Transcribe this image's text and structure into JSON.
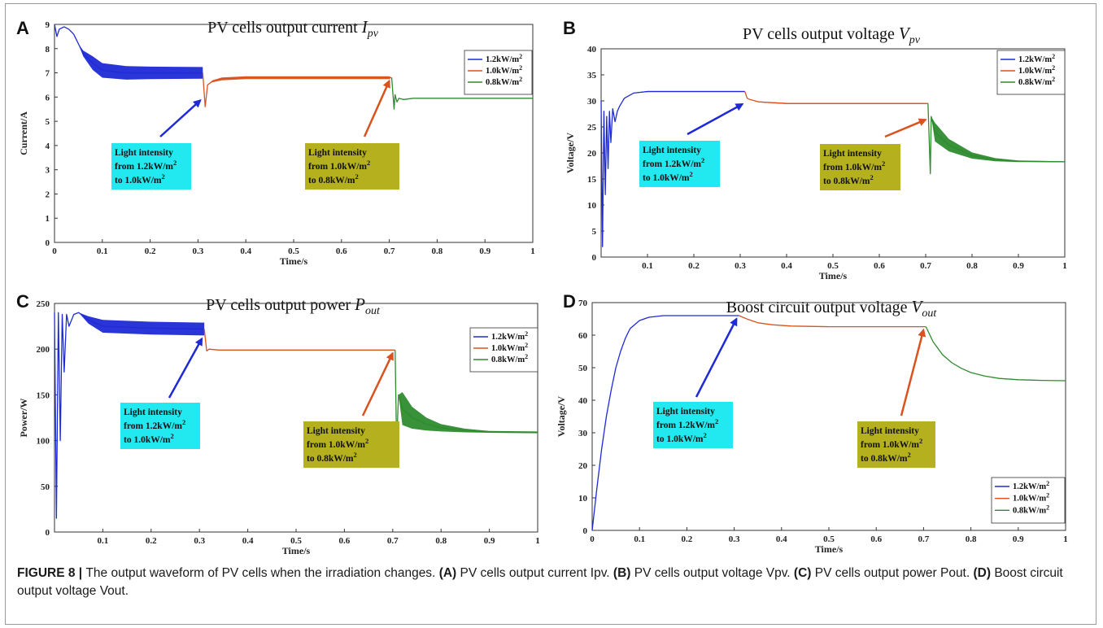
{
  "figure_label": "FIGURE 8",
  "caption_parts": [
    {
      "t": "The output waveform of PV cells when the irradiation changes. ",
      "b": false
    },
    {
      "t": "(A)",
      "b": true
    },
    {
      "t": " PV cells output current Ipv. ",
      "b": false
    },
    {
      "t": "(B)",
      "b": true
    },
    {
      "t": " PV cells output voltage Vpv. ",
      "b": false
    },
    {
      "t": "(C)",
      "b": true
    },
    {
      "t": " PV cells output power Pout. ",
      "b": false
    },
    {
      "t": "(D)",
      "b": true
    },
    {
      "t": " Boost circuit output voltage Vout.",
      "b": false
    }
  ],
  "series_colors": {
    "1.2kW/m2": "#1f2ad6",
    "1.0kW/m2": "#d9531e",
    "0.8kW/m2": "#2e8b2e"
  },
  "annotation_colors": {
    "cyan_box": "#22e8f0",
    "olive_box": "#b5b01e",
    "blue_arrow": "#1f2ad6",
    "orange_arrow": "#d9531e"
  },
  "chart_data": [
    {
      "letter": "A",
      "type": "line",
      "title_main": "PV cells output current ",
      "title_sym": "I",
      "title_sub": "pv",
      "xlabel": "Time/s",
      "ylabel": "Current/A",
      "xlim": [
        0,
        1
      ],
      "ylim": [
        0,
        9
      ],
      "xticks": [
        0,
        0.1,
        0.2,
        0.3,
        0.4,
        0.5,
        0.6,
        0.7,
        0.8,
        0.9,
        1
      ],
      "yticks": [
        0,
        1,
        2,
        3,
        4,
        5,
        6,
        7,
        8,
        9
      ],
      "legend": {
        "position": "top-right",
        "entries": [
          "1.2kW/m",
          "1.0kW/m",
          "0.8kW/m"
        ],
        "superscript": "2"
      },
      "series": [
        {
          "name": "1.2kW/m2",
          "x": [
            0,
            0.005,
            0.01,
            0.02,
            0.03,
            0.04,
            0.05,
            0.06,
            0.08,
            0.1,
            0.15,
            0.2,
            0.25,
            0.31
          ],
          "y": [
            9,
            8.5,
            8.8,
            8.9,
            8.8,
            8.6,
            8.2,
            7.8,
            7.4,
            7.1,
            7.0,
            7.0,
            7.0,
            7.0
          ],
          "band": [
            0,
            0,
            0,
            0,
            0,
            0,
            0,
            0.12,
            0.28,
            0.3,
            0.28,
            0.26,
            0.25,
            0.24
          ]
        },
        {
          "name": "1.0kW/m2",
          "x": [
            0.31,
            0.315,
            0.32,
            0.33,
            0.35,
            0.4,
            0.5,
            0.6,
            0.7,
            0.705
          ],
          "y": [
            7.0,
            5.6,
            6.5,
            6.65,
            6.75,
            6.8,
            6.8,
            6.8,
            6.8,
            6.8
          ],
          "band": [
            0,
            0,
            0,
            0.04,
            0.06,
            0.06,
            0.06,
            0.06,
            0.06,
            0
          ]
        },
        {
          "name": "0.8kW/m2",
          "x": [
            0.705,
            0.71,
            0.712,
            0.716,
            0.72,
            0.73,
            0.75,
            0.8,
            0.9,
            1.0
          ],
          "y": [
            6.8,
            5.5,
            6.1,
            5.8,
            5.95,
            5.9,
            5.95,
            5.95,
            5.95,
            5.95
          ],
          "band": [
            0,
            0,
            0,
            0,
            0,
            0,
            0,
            0,
            0,
            0
          ]
        }
      ],
      "annotations": [
        {
          "lines": [
            "Light intensity",
            "from 1.2kW/m",
            "to 1.0kW/m"
          ],
          "sup_on": [
            1,
            2
          ],
          "box": "cyan",
          "arrow_to": [
            0.31,
            6.0
          ],
          "arrow_color": "blue"
        },
        {
          "lines": [
            "Light intensity",
            "from 1.0kW/m",
            "to 0.8kW/m"
          ],
          "sup_on": [
            1,
            2
          ],
          "box": "olive",
          "arrow_to": [
            0.705,
            6.8
          ],
          "arrow_color": "orange"
        }
      ]
    },
    {
      "letter": "B",
      "type": "line",
      "title_main": "PV cells output voltage ",
      "title_sym": "V",
      "title_sub": "pv",
      "xlabel": "Time/s",
      "ylabel": "Voltage/V",
      "xlim": [
        0,
        1
      ],
      "ylim": [
        0,
        40
      ],
      "xticks": [
        0.1,
        0.2,
        0.3,
        0.4,
        0.5,
        0.6,
        0.7,
        0.8,
        0.9,
        1
      ],
      "yticks": [
        0,
        5,
        10,
        15,
        20,
        25,
        30,
        35,
        40
      ],
      "legend": {
        "position": "top-right",
        "entries": [
          "1.2kW/m",
          "1.0kW/m",
          "0.8kW/m"
        ],
        "superscript": "2"
      },
      "series": [
        {
          "name": "1.2kW/m2",
          "x": [
            0,
            0.003,
            0.006,
            0.009,
            0.012,
            0.015,
            0.018,
            0.021,
            0.025,
            0.03,
            0.035,
            0.04,
            0.05,
            0.07,
            0.1,
            0.2,
            0.31
          ],
          "y": [
            30,
            2,
            28,
            12,
            27,
            17,
            28,
            22,
            28.5,
            26,
            28,
            29,
            30.5,
            31.5,
            31.8,
            31.8,
            31.8
          ],
          "band": [
            0,
            0,
            0,
            0,
            0,
            0,
            0,
            0,
            0,
            0,
            0,
            0,
            0,
            0.05,
            0.1,
            0.1,
            0.1
          ]
        },
        {
          "name": "1.0kW/m2",
          "x": [
            0.31,
            0.315,
            0.32,
            0.34,
            0.4,
            0.5,
            0.6,
            0.7,
            0.705
          ],
          "y": [
            31.8,
            30.5,
            30.3,
            29.8,
            29.5,
            29.5,
            29.5,
            29.5,
            29.5
          ],
          "band": [
            0,
            0,
            0,
            0.1,
            0.1,
            0.1,
            0.1,
            0.1,
            0
          ]
        },
        {
          "name": "0.8kW/m2",
          "x": [
            0.705,
            0.71,
            0.712,
            0.72,
            0.75,
            0.8,
            0.85,
            0.9,
            1.0
          ],
          "y": [
            29.5,
            16,
            27,
            24,
            21.5,
            19.5,
            18.7,
            18.4,
            18.3
          ],
          "band": [
            0,
            0,
            0,
            1.8,
            1.2,
            0.6,
            0.3,
            0.15,
            0.1
          ]
        }
      ],
      "annotations": [
        {
          "lines": [
            "Light intensity",
            "from 1.2kW/m",
            "to 1.0kW/m"
          ],
          "sup_on": [
            1,
            2
          ],
          "box": "cyan",
          "arrow_to": [
            0.31,
            30
          ],
          "arrow_color": "blue"
        },
        {
          "lines": [
            "Light intensity",
            "from 1.0kW/m",
            "to 0.8kW/m"
          ],
          "sup_on": [
            1,
            2
          ],
          "box": "olive",
          "arrow_to": [
            0.705,
            27
          ],
          "arrow_color": "orange"
        }
      ]
    },
    {
      "letter": "C",
      "type": "line",
      "title_main": "PV cells output power ",
      "title_sym": "P",
      "title_sub": "out",
      "xlabel": "Time/s",
      "ylabel": "Power/W",
      "xlim": [
        0,
        1
      ],
      "ylim": [
        0,
        250
      ],
      "xticks": [
        0.1,
        0.2,
        0.3,
        0.4,
        0.5,
        0.6,
        0.7,
        0.8,
        0.9,
        1
      ],
      "yticks": [
        0,
        50,
        100,
        150,
        200,
        250
      ],
      "legend": {
        "position": "top-right",
        "entries": [
          "1.2kW/m",
          "1.0kW/m",
          "0.8kW/m"
        ],
        "superscript": "2"
      },
      "series": [
        {
          "name": "1.2kW/m2",
          "x": [
            0,
            0.004,
            0.008,
            0.012,
            0.016,
            0.02,
            0.025,
            0.03,
            0.04,
            0.05,
            0.07,
            0.1,
            0.2,
            0.31
          ],
          "y": [
            240,
            15,
            240,
            100,
            238,
            175,
            238,
            225,
            238,
            240,
            232,
            225,
            223,
            222
          ],
          "band": [
            0,
            0,
            0,
            0,
            0,
            0,
            0,
            0,
            0,
            0,
            4,
            7,
            7,
            7
          ]
        },
        {
          "name": "1.0kW/m2",
          "x": [
            0.31,
            0.315,
            0.32,
            0.34,
            0.4,
            0.5,
            0.6,
            0.7,
            0.705
          ],
          "y": [
            222,
            198,
            200,
            199,
            199,
            199,
            199,
            199,
            199
          ],
          "band": [
            0,
            0,
            0,
            0,
            0,
            0,
            0,
            0,
            0
          ]
        },
        {
          "name": "0.8kW/m2",
          "x": [
            0.705,
            0.708,
            0.712,
            0.72,
            0.74,
            0.77,
            0.8,
            0.85,
            0.9,
            1.0
          ],
          "y": [
            199,
            95,
            150,
            135,
            125,
            118,
            114,
            111,
            109.5,
            109
          ],
          "band": [
            0,
            0,
            0,
            18,
            12,
            7,
            4,
            2,
            1,
            1
          ]
        }
      ],
      "annotations": [
        {
          "lines": [
            "Light intensity",
            "from 1.2kW/m",
            "to 1.0kW/m"
          ],
          "sup_on": [
            1,
            2
          ],
          "box": "cyan",
          "arrow_to": [
            0.31,
            215
          ],
          "arrow_color": "blue"
        },
        {
          "lines": [
            "Light intensity",
            "from 1.0kW/m",
            "to 0.8kW/m"
          ],
          "sup_on": [
            1,
            2
          ],
          "box": "olive",
          "arrow_to": [
            0.705,
            199
          ],
          "arrow_color": "orange"
        }
      ]
    },
    {
      "letter": "D",
      "type": "line",
      "title_main": "Boost circuit output voltage ",
      "title_sym": "V",
      "title_sub": "out",
      "xlabel": "Time/s",
      "ylabel": "Voltage/V",
      "xlim": [
        0,
        1
      ],
      "ylim": [
        0,
        70
      ],
      "xticks": [
        0,
        0.1,
        0.2,
        0.3,
        0.4,
        0.5,
        0.6,
        0.7,
        0.8,
        0.9,
        1
      ],
      "yticks": [
        0,
        10,
        20,
        30,
        40,
        50,
        60,
        70
      ],
      "legend": {
        "position": "bottom-right",
        "entries": [
          "1.2kW/m",
          "1.0kW/m",
          "0.8kW/m"
        ],
        "superscript": "2"
      },
      "series": [
        {
          "name": "1.2kW/m2",
          "x": [
            0,
            0.01,
            0.02,
            0.03,
            0.04,
            0.05,
            0.06,
            0.07,
            0.08,
            0.1,
            0.12,
            0.15,
            0.2,
            0.31
          ],
          "y": [
            0,
            13,
            25,
            35,
            43,
            50,
            55,
            59,
            62,
            64.5,
            65.5,
            66,
            66,
            66
          ],
          "band": [
            0,
            0,
            0,
            0,
            0,
            0,
            0,
            0,
            0,
            0,
            0,
            0,
            0,
            0
          ]
        },
        {
          "name": "1.0kW/m2",
          "x": [
            0.31,
            0.33,
            0.35,
            0.38,
            0.42,
            0.5,
            0.6,
            0.705
          ],
          "y": [
            66,
            64.8,
            63.8,
            63.2,
            62.8,
            62.6,
            62.6,
            62.6
          ],
          "band": [
            0,
            0,
            0,
            0,
            0,
            0,
            0,
            0
          ]
        },
        {
          "name": "0.8kW/m2",
          "x": [
            0.705,
            0.72,
            0.74,
            0.76,
            0.78,
            0.8,
            0.83,
            0.86,
            0.9,
            0.95,
            1.0
          ],
          "y": [
            62.6,
            58,
            54,
            51.5,
            49.8,
            48.5,
            47.4,
            46.7,
            46.3,
            46.1,
            46
          ],
          "band": [
            0,
            0,
            0,
            0,
            0,
            0,
            0,
            0,
            0,
            0,
            0
          ]
        }
      ],
      "annotations": [
        {
          "lines": [
            "Light intensity",
            "from 1.2kW/m",
            "to 1.0kW/m"
          ],
          "sup_on": [
            1,
            2
          ],
          "box": "cyan",
          "arrow_to": [
            0.31,
            66
          ],
          "arrow_color": "blue"
        },
        {
          "lines": [
            "Light intensity",
            "from 1.0kW/m",
            "to 0.8kW/m"
          ],
          "sup_on": [
            1,
            2
          ],
          "box": "olive",
          "arrow_to": [
            0.705,
            62.6
          ],
          "arrow_color": "orange"
        }
      ]
    }
  ]
}
